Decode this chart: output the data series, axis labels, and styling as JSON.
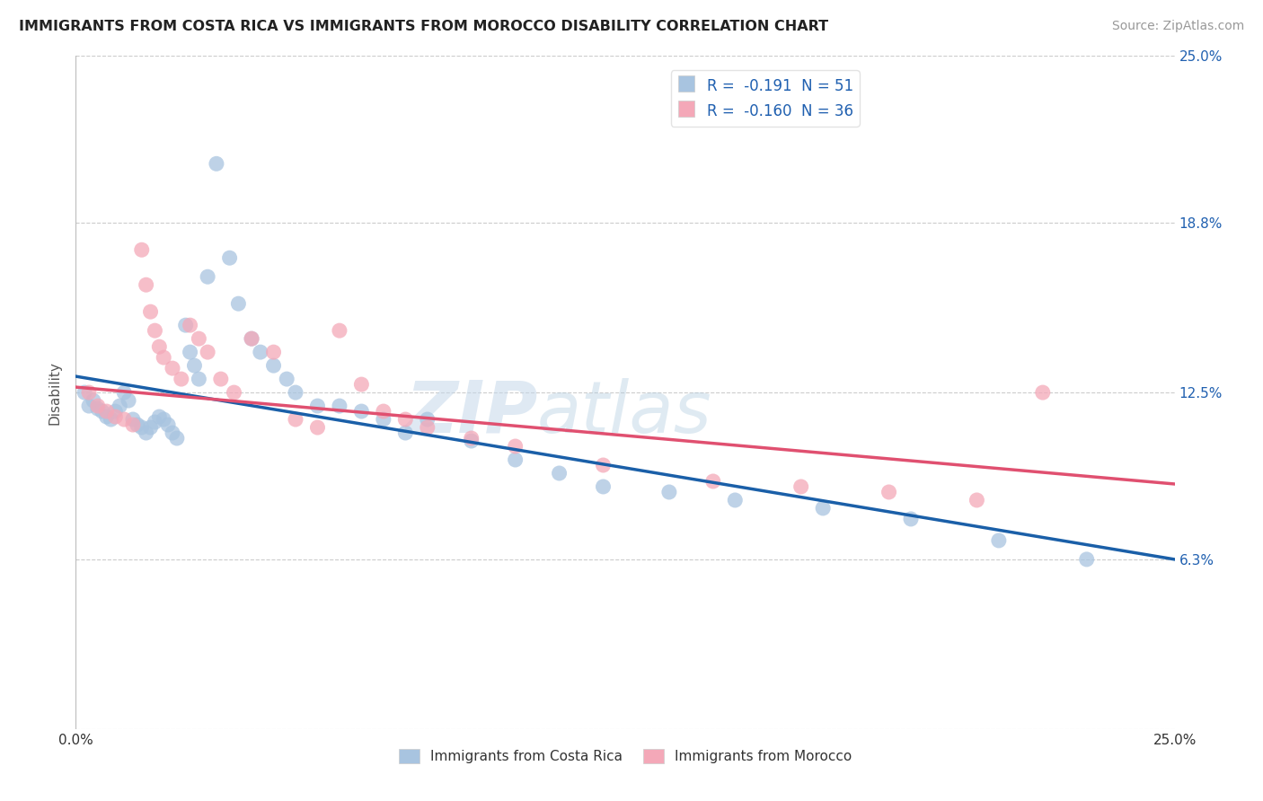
{
  "title": "IMMIGRANTS FROM COSTA RICA VS IMMIGRANTS FROM MOROCCO DISABILITY CORRELATION CHART",
  "source": "Source: ZipAtlas.com",
  "ylabel": "Disability",
  "xlim": [
    0.0,
    0.25
  ],
  "ylim": [
    0.0,
    0.25
  ],
  "yticks": [
    0.063,
    0.125,
    0.188,
    0.25
  ],
  "ytick_labels": [
    "6.3%",
    "12.5%",
    "18.8%",
    "25.0%"
  ],
  "legend_r1": "R =  -0.191  N = 51",
  "legend_r2": "R =  -0.160  N = 36",
  "color_blue": "#a8c4e0",
  "color_pink": "#f4a8b8",
  "trendline_blue": "#1a5fa8",
  "trendline_pink": "#e05070",
  "watermark": "ZIPatlas",
  "legend_label1": "Immigrants from Costa Rica",
  "legend_label2": "Immigrants from Morocco",
  "blue_trend_start_y": 0.131,
  "blue_trend_end_y": 0.063,
  "pink_trend_start_y": 0.127,
  "pink_trend_end_y": 0.091,
  "costa_rica_x": [
    0.002,
    0.003,
    0.004,
    0.005,
    0.006,
    0.007,
    0.008,
    0.009,
    0.01,
    0.011,
    0.012,
    0.013,
    0.014,
    0.015,
    0.016,
    0.017,
    0.018,
    0.019,
    0.02,
    0.021,
    0.022,
    0.023,
    0.025,
    0.026,
    0.027,
    0.028,
    0.03,
    0.032,
    0.035,
    0.037,
    0.04,
    0.042,
    0.045,
    0.048,
    0.05,
    0.055,
    0.06,
    0.065,
    0.07,
    0.075,
    0.08,
    0.09,
    0.1,
    0.11,
    0.12,
    0.135,
    0.15,
    0.17,
    0.19,
    0.21,
    0.23
  ],
  "costa_rica_y": [
    0.125,
    0.12,
    0.122,
    0.119,
    0.118,
    0.116,
    0.115,
    0.118,
    0.12,
    0.125,
    0.122,
    0.115,
    0.113,
    0.112,
    0.11,
    0.112,
    0.114,
    0.116,
    0.115,
    0.113,
    0.11,
    0.108,
    0.15,
    0.14,
    0.135,
    0.13,
    0.168,
    0.21,
    0.175,
    0.158,
    0.145,
    0.14,
    0.135,
    0.13,
    0.125,
    0.12,
    0.12,
    0.118,
    0.115,
    0.11,
    0.115,
    0.107,
    0.1,
    0.095,
    0.09,
    0.088,
    0.085,
    0.082,
    0.078,
    0.07,
    0.063
  ],
  "morocco_x": [
    0.003,
    0.005,
    0.007,
    0.009,
    0.011,
    0.013,
    0.015,
    0.016,
    0.017,
    0.018,
    0.019,
    0.02,
    0.022,
    0.024,
    0.026,
    0.028,
    0.03,
    0.033,
    0.036,
    0.04,
    0.045,
    0.05,
    0.055,
    0.06,
    0.065,
    0.07,
    0.075,
    0.08,
    0.09,
    0.1,
    0.12,
    0.145,
    0.165,
    0.185,
    0.205,
    0.22
  ],
  "morocco_y": [
    0.125,
    0.12,
    0.118,
    0.116,
    0.115,
    0.113,
    0.178,
    0.165,
    0.155,
    0.148,
    0.142,
    0.138,
    0.134,
    0.13,
    0.15,
    0.145,
    0.14,
    0.13,
    0.125,
    0.145,
    0.14,
    0.115,
    0.112,
    0.148,
    0.128,
    0.118,
    0.115,
    0.112,
    0.108,
    0.105,
    0.098,
    0.092,
    0.09,
    0.088,
    0.085,
    0.125
  ]
}
